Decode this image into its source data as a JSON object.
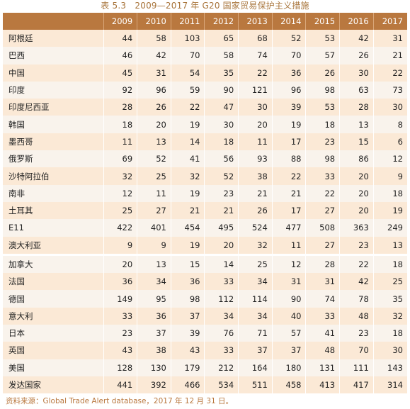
{
  "title": "表 5.3　2009—2017 年 G20 国家贸易保护主义措施",
  "header": [
    "",
    "2009",
    "2010",
    "2011",
    "2012",
    "2013",
    "2014",
    "2015",
    "2016",
    "2017"
  ],
  "rows": [
    {
      "country": "阿根廷",
      "values": [
        "44",
        "58",
        "103",
        "65",
        "68",
        "52",
        "53",
        "42",
        "31"
      ]
    },
    {
      "country": "巴西",
      "values": [
        "46",
        "42",
        "70",
        "58",
        "74",
        "70",
        "57",
        "26",
        "21"
      ]
    },
    {
      "country": "中国",
      "values": [
        "45",
        "31",
        "54",
        "35",
        "22",
        "36",
        "26",
        "30",
        "22"
      ]
    },
    {
      "country": "印度",
      "values": [
        "92",
        "96",
        "59",
        "90",
        "121",
        "96",
        "98",
        "63",
        "73"
      ]
    },
    {
      "country": "印度尼西亚",
      "values": [
        "28",
        "26",
        "22",
        "47",
        "30",
        "39",
        "53",
        "28",
        "30"
      ]
    },
    {
      "country": "韩国",
      "values": [
        "18",
        "20",
        "19",
        "30",
        "20",
        "19",
        "18",
        "13",
        "8"
      ]
    },
    {
      "country": "墨西哥",
      "values": [
        "11",
        "13",
        "14",
        "18",
        "11",
        "17",
        "23",
        "15",
        "6"
      ]
    },
    {
      "country": "俄罗斯",
      "values": [
        "69",
        "52",
        "41",
        "56",
        "93",
        "88",
        "98",
        "86",
        "12"
      ]
    },
    {
      "country": "沙特阿拉伯",
      "values": [
        "32",
        "25",
        "32",
        "52",
        "38",
        "22",
        "33",
        "20",
        "9"
      ]
    },
    {
      "country": "南非",
      "values": [
        "12",
        "11",
        "19",
        "23",
        "21",
        "21",
        "22",
        "20",
        "18"
      ]
    },
    {
      "country": "土耳其",
      "values": [
        "25",
        "27",
        "21",
        "21",
        "26",
        "17",
        "27",
        "20",
        "19"
      ]
    },
    {
      "country": "E11",
      "values": [
        "422",
        "401",
        "454",
        "495",
        "524",
        "477",
        "508",
        "363",
        "249"
      ]
    },
    {
      "country": "澳大利亚",
      "values": [
        "9",
        "9",
        "19",
        "20",
        "32",
        "11",
        "27",
        "23",
        "13"
      ]
    },
    {
      "country": "加拿大",
      "values": [
        "20",
        "13",
        "15",
        "14",
        "25",
        "12",
        "28",
        "22",
        "18"
      ],
      "group_start": true
    },
    {
      "country": "法国",
      "values": [
        "36",
        "34",
        "36",
        "33",
        "34",
        "31",
        "31",
        "42",
        "25"
      ]
    },
    {
      "country": "德国",
      "values": [
        "149",
        "95",
        "98",
        "112",
        "114",
        "90",
        "74",
        "78",
        "35"
      ]
    },
    {
      "country": "意大利",
      "values": [
        "33",
        "36",
        "37",
        "34",
        "34",
        "40",
        "33",
        "48",
        "32"
      ]
    },
    {
      "country": "日本",
      "values": [
        "23",
        "37",
        "39",
        "76",
        "71",
        "57",
        "41",
        "23",
        "18"
      ]
    },
    {
      "country": "英国",
      "values": [
        "43",
        "38",
        "43",
        "33",
        "37",
        "37",
        "48",
        "70",
        "30"
      ]
    },
    {
      "country": "美国",
      "values": [
        "128",
        "130",
        "179",
        "212",
        "164",
        "180",
        "131",
        "111",
        "143"
      ]
    },
    {
      "country": "发达国家",
      "values": [
        "441",
        "392",
        "466",
        "534",
        "511",
        "458",
        "413",
        "417",
        "314"
      ]
    }
  ],
  "source": "资料来源：Global Trade Alert database，2017 年 12 月 31 日。"
}
